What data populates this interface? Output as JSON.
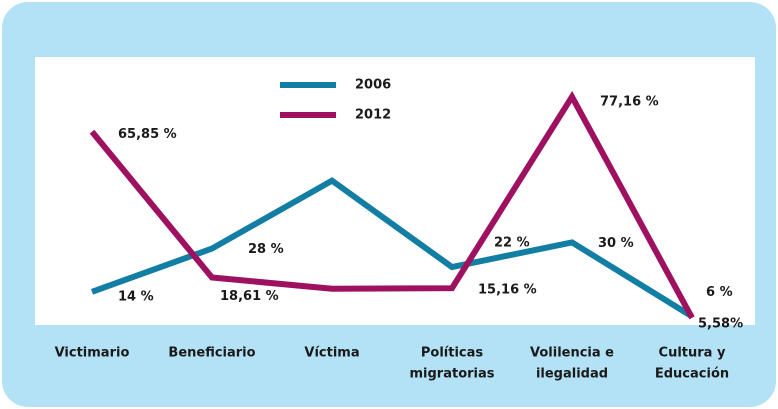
{
  "chart_data": {
    "type": "line",
    "categories": [
      [
        "Victimario"
      ],
      [
        "Beneficiario"
      ],
      [
        "Víctima"
      ],
      [
        "Políticas",
        "migratorias"
      ],
      [
        "Volilencia e",
        "ilegalidad"
      ],
      [
        "Cultura y",
        "Educación"
      ]
    ],
    "series": [
      {
        "name": "2006",
        "color": "#137ea3",
        "values": [
          14,
          28,
          50,
          22,
          30,
          6
        ],
        "value_labels": [
          "14 %",
          "28 %",
          null,
          "22 %",
          "30 %",
          "6 %"
        ]
      },
      {
        "name": "2012",
        "color": "#9e1160",
        "values": [
          65.85,
          18.61,
          15,
          15.16,
          77.16,
          5.58
        ],
        "value_labels": [
          "65,85 %",
          "18,61 %",
          null,
          "15,16 %",
          "77,16 %",
          "5,58%"
        ]
      }
    ],
    "ylim": [
      0,
      80
    ]
  }
}
